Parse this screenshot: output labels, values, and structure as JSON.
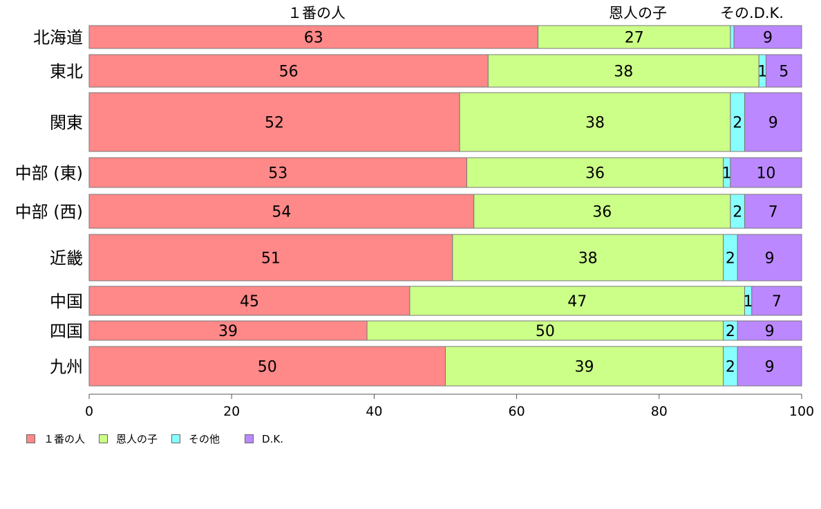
{
  "chart_data": {
    "type": "bar",
    "orientation": "horizontal",
    "stacked": true,
    "categories": [
      "北海道",
      "東北",
      "関東",
      "中部 (東)",
      "中部 (西)",
      "近畿",
      "中国",
      "四国",
      "九州"
    ],
    "series": [
      {
        "name": "１番の人",
        "color": "#ff8888",
        "values": [
          63,
          56,
          52,
          53,
          54,
          51,
          45,
          39,
          50
        ]
      },
      {
        "name": "恩人の子",
        "color": "#ccff88",
        "values": [
          27,
          38,
          38,
          36,
          36,
          38,
          47,
          50,
          39
        ]
      },
      {
        "name": "その他",
        "color": "#88ffff",
        "values": [
          0.5,
          1,
          2,
          1,
          2,
          2,
          1,
          2,
          2
        ]
      },
      {
        "name": "D.K.",
        "color": "#bb88ff",
        "values": [
          9,
          5,
          9,
          10,
          7,
          9,
          7,
          9,
          9
        ]
      }
    ],
    "data_labels": [
      [
        "63",
        "27",
        "",
        "9"
      ],
      [
        "56",
        "38",
        "1",
        "5"
      ],
      [
        "52",
        "38",
        "2",
        "9"
      ],
      [
        "53",
        "36",
        "1",
        "10"
      ],
      [
        "54",
        "36",
        "2",
        "7"
      ],
      [
        "51",
        "38",
        "2",
        "9"
      ],
      [
        "45",
        "47",
        "1",
        "7"
      ],
      [
        "39",
        "50",
        "2",
        "9"
      ],
      [
        "50",
        "39",
        "2",
        "9"
      ]
    ],
    "top_labels": [
      "１番の人",
      "恩人の子",
      "その.D.K."
    ],
    "xlim": [
      0,
      100
    ],
    "xticks": [
      0,
      20,
      40,
      60,
      80,
      100
    ],
    "legend": "bottom-left",
    "grid": false
  }
}
